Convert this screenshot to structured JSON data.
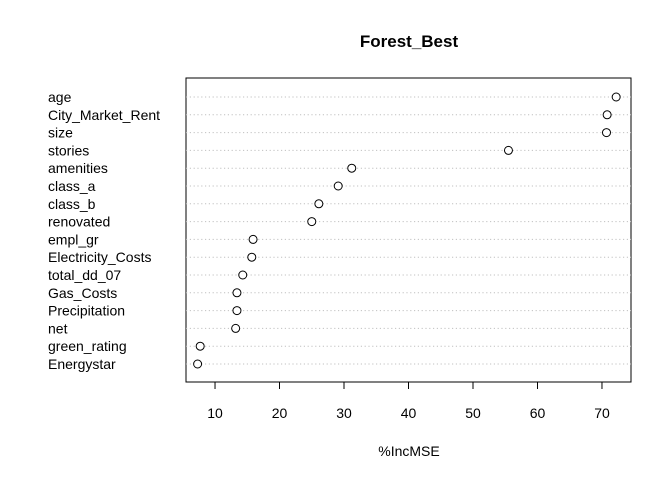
{
  "chart_data": {
    "type": "scatter",
    "title": "Forest_Best",
    "xlabel": "%IncMSE",
    "ylabel": "",
    "xlim": [
      5.5,
      74.5
    ],
    "xticks": [
      10,
      20,
      30,
      40,
      50,
      60,
      70
    ],
    "xtick_labels": [
      "10",
      "20",
      "30",
      "40",
      "50",
      "60",
      "70"
    ],
    "grid": "dotted horizontal guide lines",
    "categories": [
      "age",
      "City_Market_Rent",
      "size",
      "stories",
      "amenities",
      "class_a",
      "class_b",
      "renovated",
      "empl_gr",
      "Electricity_Costs",
      "total_dd_07",
      "Gas_Costs",
      "Precipitation",
      "net",
      "green_rating",
      "Energystar"
    ],
    "values": [
      72.2,
      70.8,
      70.7,
      55.5,
      31.2,
      29.1,
      26.1,
      25.0,
      15.9,
      15.7,
      14.3,
      13.4,
      13.4,
      13.2,
      7.7,
      7.3
    ]
  }
}
